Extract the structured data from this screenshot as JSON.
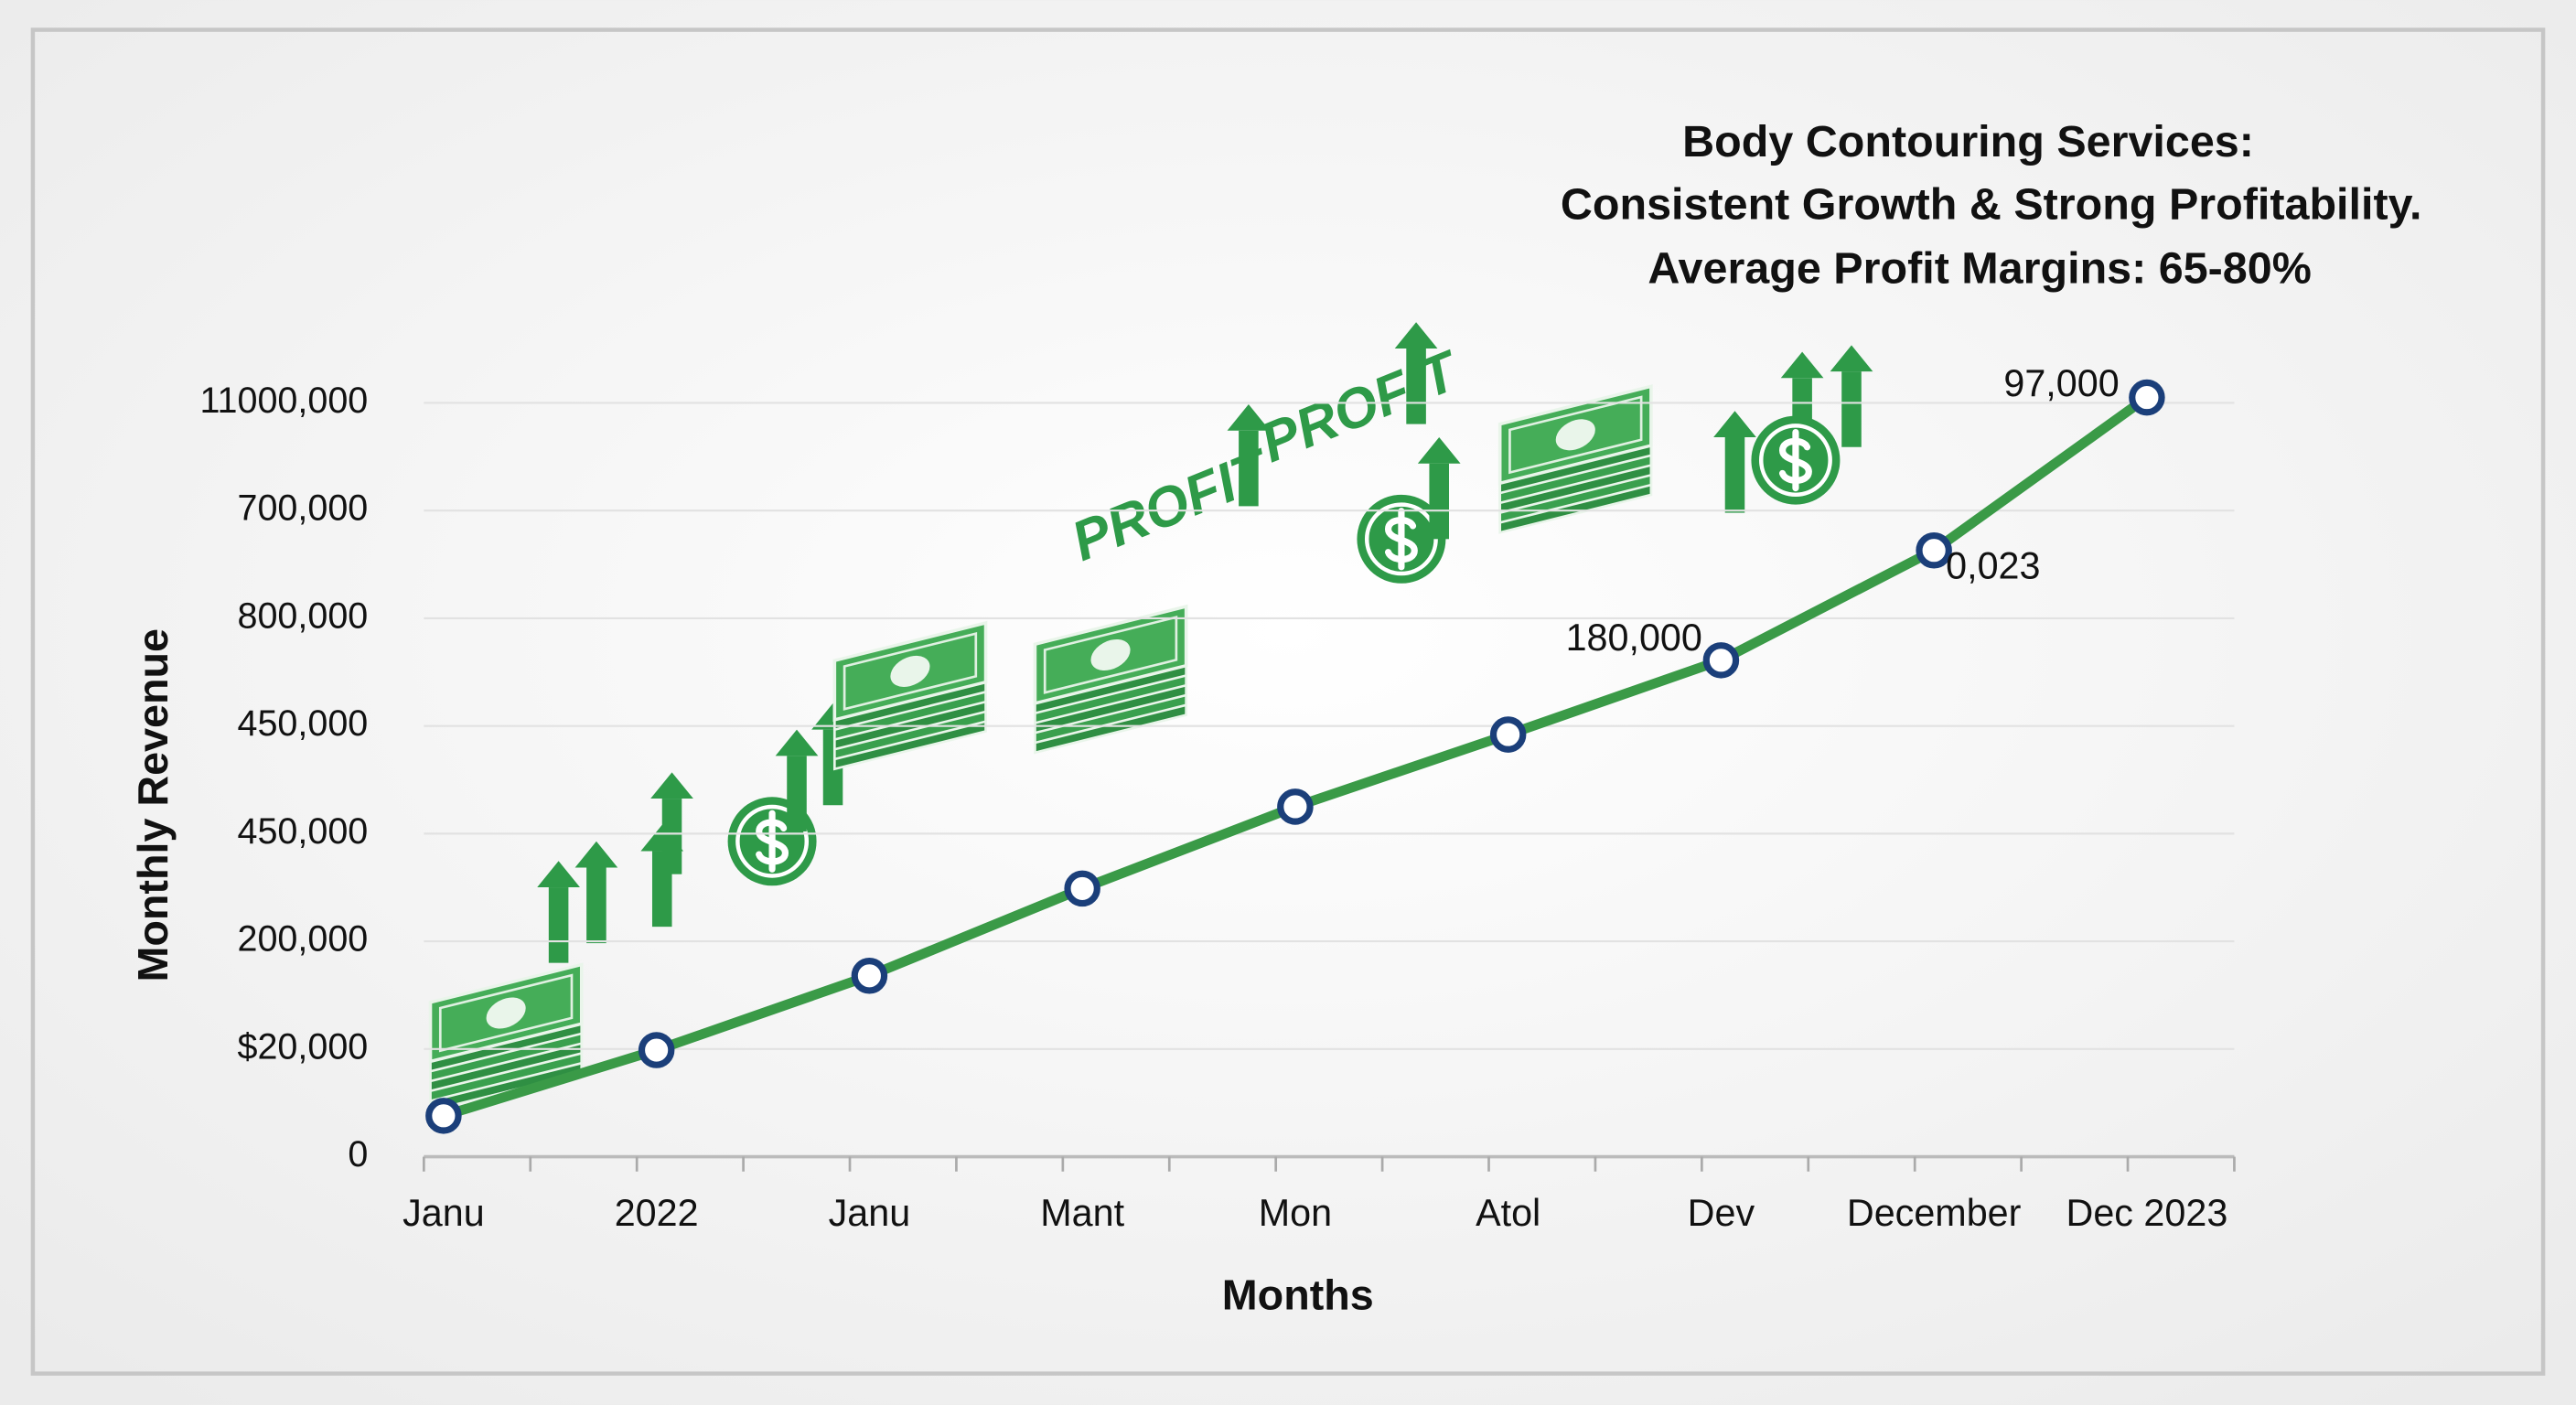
{
  "chart_data": {
    "type": "line",
    "title": [
      "Body Contouring Services:",
      "Consistent Growth & Strong Profitability.",
      "Average Profit Margins: 65-80%"
    ],
    "x_label": "Months",
    "y_label": "Monthly Revenue",
    "categories": [
      "Janu",
      "2022",
      "Janu",
      "Mant",
      "Mon",
      "Atol",
      "Dev",
      "December",
      "Dec 2023"
    ],
    "series": [
      {
        "name": "Monthly Revenue",
        "color": "#3a9a47",
        "values": [
          0.38,
          0.99,
          1.68,
          2.49,
          3.25,
          3.92,
          4.61,
          5.63,
          7.05
        ],
        "value_labels": [
          null,
          null,
          null,
          null,
          null,
          null,
          "180,000",
          "0,023",
          "97,000"
        ]
      }
    ],
    "ylim": [
      0,
      7.2
    ],
    "yticks": [
      {
        "value": 0,
        "label": "0"
      },
      {
        "value": 1,
        "label": "$20,000"
      },
      {
        "value": 2,
        "label": "200,000"
      },
      {
        "value": 3,
        "label": "450,000"
      },
      {
        "value": 4,
        "label": "450,000"
      },
      {
        "value": 5,
        "label": "800,000"
      },
      {
        "value": 6,
        "label": "700,000"
      },
      {
        "value": 7,
        "label": "11000,000"
      }
    ],
    "grid": true,
    "marker_color": "#1b3f7a",
    "annotations": [
      "PROFIT",
      "PROFIT"
    ]
  }
}
